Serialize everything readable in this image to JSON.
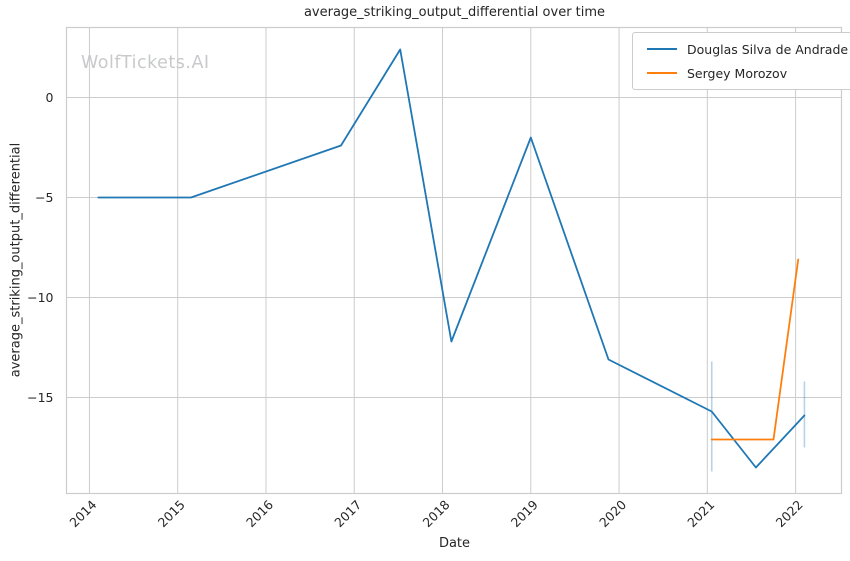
{
  "watermark": "WolfTickets.AI",
  "chart_data": {
    "type": "line",
    "title": "average_striking_output_differential over time",
    "xlabel": "Date",
    "ylabel": "average_striking_output_differential",
    "xlim": [
      2013.74,
      2022.52
    ],
    "ylim": [
      -19.8,
      3.5
    ],
    "grid": true,
    "legend_position": "upper right",
    "x_ticks": [
      2014,
      2015,
      2016,
      2017,
      2018,
      2019,
      2020,
      2021,
      2022
    ],
    "x_tick_labels": [
      "2014",
      "2015",
      "2016",
      "2017",
      "2018",
      "2019",
      "2020",
      "2021",
      "2022"
    ],
    "y_ticks": [
      0,
      -5,
      -10,
      -15
    ],
    "y_tick_labels": [
      "0",
      "−5",
      "−10",
      "−15"
    ],
    "series": [
      {
        "name": "Douglas Silva de Andrade",
        "color": "#1f77b4",
        "x": [
          2014.1,
          2015.15,
          2016.85,
          2017.52,
          2018.1,
          2019.0,
          2019.88,
          2021.05,
          2021.55,
          2022.1
        ],
        "y": [
          -5.0,
          -5.0,
          -2.4,
          2.4,
          -12.2,
          -2.0,
          -13.1,
          -15.7,
          -18.5,
          -15.9
        ]
      },
      {
        "name": "Sergey Morozov",
        "color": "#ff7f0e",
        "x": [
          2021.05,
          2021.75,
          2022.03
        ],
        "y": [
          -17.1,
          -17.1,
          -8.1
        ]
      }
    ],
    "error_bars": {
      "color": "rgba(31,119,180,0.32)",
      "points": [
        {
          "x": 2021.05,
          "y_low": -18.7,
          "y_high": -13.2
        },
        {
          "x": 2022.1,
          "y_low": -17.5,
          "y_high": -14.2
        }
      ]
    }
  }
}
